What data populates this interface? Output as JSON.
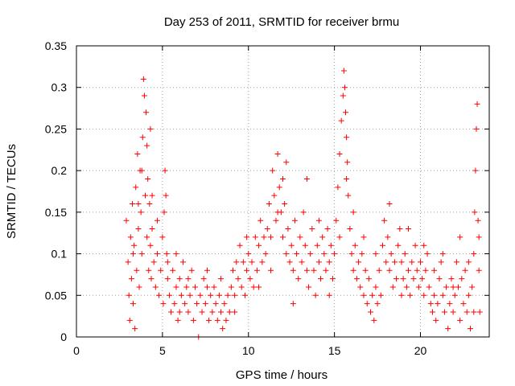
{
  "chart_data": {
    "type": "scatter",
    "title": "Day 253 of 2011, SRMTID for receiver brmu",
    "xlabel": "GPS time / hours",
    "ylabel": "SRMTID / TECUs",
    "xlim": [
      0,
      24
    ],
    "ylim": [
      0,
      0.35
    ],
    "xticks": [
      0,
      5,
      10,
      15,
      20
    ],
    "xtick_labels": [
      "0",
      "5",
      "10",
      "15",
      "20"
    ],
    "yticks": [
      0,
      0.05,
      0.1,
      0.15,
      0.2,
      0.25,
      0.3,
      0.35
    ],
    "ytick_labels": [
      "0",
      "0.05",
      "0.1",
      "0.15",
      "0.2",
      "0.25",
      "0.3",
      "0.35"
    ],
    "grid": true,
    "marker": "+",
    "series": [
      {
        "name": "SRMTID",
        "color": "#ff0000",
        "points": [
          [
            2.9,
            0.14
          ],
          [
            3.0,
            0.09
          ],
          [
            3.05,
            0.05
          ],
          [
            3.1,
            0.02
          ],
          [
            3.15,
            0.12
          ],
          [
            3.2,
            0.07
          ],
          [
            3.25,
            0.16
          ],
          [
            3.3,
            0.04
          ],
          [
            3.35,
            0.11
          ],
          [
            3.4,
            0.01
          ],
          [
            3.45,
            0.18
          ],
          [
            3.5,
            0.08
          ],
          [
            3.55,
            0.22
          ],
          [
            3.6,
            0.13
          ],
          [
            3.65,
            0.06
          ],
          [
            3.7,
            0.2
          ],
          [
            3.75,
            0.15
          ],
          [
            3.8,
            0.1
          ],
          [
            3.85,
            0.24
          ],
          [
            3.9,
            0.31
          ],
          [
            3.95,
            0.29
          ],
          [
            4.0,
            0.17
          ],
          [
            4.05,
            0.27
          ],
          [
            4.1,
            0.12
          ],
          [
            4.15,
            0.19
          ],
          [
            4.2,
            0.08
          ],
          [
            4.25,
            0.16
          ],
          [
            4.3,
            0.11
          ],
          [
            4.35,
            0.07
          ],
          [
            4.4,
            0.13
          ],
          [
            4.5,
            0.09
          ],
          [
            4.6,
            0.06
          ],
          [
            4.7,
            0.1
          ],
          [
            4.8,
            0.05
          ],
          [
            4.9,
            0.08
          ],
          [
            5.0,
            0.12
          ],
          [
            5.05,
            0.04
          ],
          [
            5.1,
            0.15
          ],
          [
            5.15,
            0.2
          ],
          [
            5.2,
            0.17
          ],
          [
            5.25,
            0.1
          ],
          [
            5.3,
            0.07
          ],
          [
            5.4,
            0.05
          ],
          [
            5.5,
            0.03
          ],
          [
            5.6,
            0.08
          ],
          [
            5.7,
            0.04
          ],
          [
            5.8,
            0.06
          ],
          [
            5.9,
            0.02
          ],
          [
            6.0,
            0.07
          ],
          [
            6.1,
            0.05
          ],
          [
            6.2,
            0.09
          ],
          [
            6.3,
            0.04
          ],
          [
            6.4,
            0.06
          ],
          [
            6.5,
            0.03
          ],
          [
            6.6,
            0.05
          ],
          [
            6.7,
            0.08
          ],
          [
            6.8,
            0.02
          ],
          [
            6.9,
            0.06
          ],
          [
            7.0,
            0.04
          ],
          [
            7.1,
            0.0
          ],
          [
            7.2,
            0.05
          ],
          [
            7.3,
            0.03
          ],
          [
            7.4,
            0.07
          ],
          [
            7.5,
            0.04
          ],
          [
            7.6,
            0.06
          ],
          [
            7.7,
            0.02
          ],
          [
            7.8,
            0.05
          ],
          [
            7.9,
            0.03
          ],
          [
            8.0,
            0.06
          ],
          [
            8.1,
            0.04
          ],
          [
            8.2,
            0.02
          ],
          [
            8.3,
            0.05
          ],
          [
            8.4,
            0.03
          ],
          [
            8.5,
            0.01
          ],
          [
            8.6,
            0.04
          ],
          [
            8.7,
            0.02
          ],
          [
            8.8,
            0.05
          ],
          [
            8.9,
            0.03
          ],
          [
            9.0,
            0.06
          ],
          [
            9.1,
            0.08
          ],
          [
            9.2,
            0.05
          ],
          [
            9.3,
            0.09
          ],
          [
            9.4,
            0.07
          ],
          [
            9.5,
            0.11
          ],
          [
            9.6,
            0.06
          ],
          [
            9.7,
            0.09
          ],
          [
            9.8,
            0.05
          ],
          [
            9.9,
            0.08
          ],
          [
            10.0,
            0.1
          ],
          [
            10.1,
            0.07
          ],
          [
            10.2,
            0.09
          ],
          [
            10.3,
            0.06
          ],
          [
            10.4,
            0.12
          ],
          [
            10.5,
            0.08
          ],
          [
            10.6,
            0.11
          ],
          [
            10.7,
            0.14
          ],
          [
            10.8,
            0.09
          ],
          [
            10.9,
            0.12
          ],
          [
            11.0,
            0.1
          ],
          [
            11.1,
            0.13
          ],
          [
            11.2,
            0.16
          ],
          [
            11.3,
            0.12
          ],
          [
            11.4,
            0.2
          ],
          [
            11.5,
            0.17
          ],
          [
            11.6,
            0.14
          ],
          [
            11.7,
            0.22
          ],
          [
            11.8,
            0.18
          ],
          [
            11.9,
            0.15
          ],
          [
            12.0,
            0.12
          ],
          [
            12.1,
            0.16
          ],
          [
            12.2,
            0.1
          ],
          [
            12.3,
            0.13
          ],
          [
            12.4,
            0.09
          ],
          [
            12.5,
            0.11
          ],
          [
            12.6,
            0.08
          ],
          [
            12.7,
            0.14
          ],
          [
            12.8,
            0.1
          ],
          [
            12.9,
            0.07
          ],
          [
            13.0,
            0.12
          ],
          [
            13.1,
            0.09
          ],
          [
            13.2,
            0.15
          ],
          [
            13.3,
            0.11
          ],
          [
            13.4,
            0.08
          ],
          [
            13.5,
            0.06
          ],
          [
            13.6,
            0.1
          ],
          [
            13.7,
            0.13
          ],
          [
            13.8,
            0.08
          ],
          [
            13.9,
            0.05
          ],
          [
            14.0,
            0.11
          ],
          [
            14.1,
            0.09
          ],
          [
            14.2,
            0.07
          ],
          [
            14.3,
            0.12
          ],
          [
            14.4,
            0.1
          ],
          [
            14.5,
            0.08
          ],
          [
            14.6,
            0.13
          ],
          [
            14.7,
            0.09
          ],
          [
            14.8,
            0.11
          ],
          [
            14.9,
            0.07
          ],
          [
            15.0,
            0.1
          ],
          [
            15.1,
            0.14
          ],
          [
            15.2,
            0.18
          ],
          [
            15.3,
            0.22
          ],
          [
            15.4,
            0.26
          ],
          [
            15.5,
            0.29
          ],
          [
            15.55,
            0.32
          ],
          [
            15.6,
            0.3
          ],
          [
            15.65,
            0.27
          ],
          [
            15.7,
            0.24
          ],
          [
            15.75,
            0.21
          ],
          [
            15.8,
            0.17
          ],
          [
            15.9,
            0.13
          ],
          [
            16.0,
            0.1
          ],
          [
            16.1,
            0.08
          ],
          [
            16.2,
            0.11
          ],
          [
            16.3,
            0.07
          ],
          [
            16.4,
            0.09
          ],
          [
            16.5,
            0.06
          ],
          [
            16.6,
            0.1
          ],
          [
            16.7,
            0.05
          ],
          [
            16.8,
            0.08
          ],
          [
            16.9,
            0.04
          ],
          [
            17.0,
            0.07
          ],
          [
            17.1,
            0.03
          ],
          [
            17.2,
            0.05
          ],
          [
            17.3,
            0.02
          ],
          [
            17.4,
            0.06
          ],
          [
            17.5,
            0.04
          ],
          [
            17.6,
            0.08
          ],
          [
            17.7,
            0.05
          ],
          [
            17.8,
            0.11
          ],
          [
            17.9,
            0.14
          ],
          [
            18.0,
            0.09
          ],
          [
            18.1,
            0.12
          ],
          [
            18.2,
            0.08
          ],
          [
            18.3,
            0.1
          ],
          [
            18.4,
            0.06
          ],
          [
            18.5,
            0.09
          ],
          [
            18.6,
            0.07
          ],
          [
            18.7,
            0.11
          ],
          [
            18.8,
            0.13
          ],
          [
            18.9,
            0.09
          ],
          [
            19.0,
            0.07
          ],
          [
            19.1,
            0.1
          ],
          [
            19.2,
            0.06
          ],
          [
            19.3,
            0.08
          ],
          [
            19.4,
            0.05
          ],
          [
            19.5,
            0.09
          ],
          [
            19.6,
            0.07
          ],
          [
            19.7,
            0.11
          ],
          [
            19.8,
            0.08
          ],
          [
            19.9,
            0.06
          ],
          [
            20.0,
            0.09
          ],
          [
            20.1,
            0.07
          ],
          [
            20.2,
            0.05
          ],
          [
            20.3,
            0.08
          ],
          [
            20.4,
            0.1
          ],
          [
            20.5,
            0.06
          ],
          [
            20.6,
            0.04
          ],
          [
            20.7,
            0.03
          ],
          [
            20.8,
            0.05
          ],
          [
            20.9,
            0.02
          ],
          [
            21.0,
            0.04
          ],
          [
            21.1,
            0.07
          ],
          [
            21.2,
            0.09
          ],
          [
            21.3,
            0.05
          ],
          [
            21.4,
            0.03
          ],
          [
            21.5,
            0.06
          ],
          [
            21.6,
            0.01
          ],
          [
            21.7,
            0.04
          ],
          [
            21.8,
            0.07
          ],
          [
            21.9,
            0.03
          ],
          [
            22.0,
            0.05
          ],
          [
            22.1,
            0.09
          ],
          [
            22.2,
            0.06
          ],
          [
            22.3,
            0.02
          ],
          [
            22.4,
            0.07
          ],
          [
            22.5,
            0.04
          ],
          [
            22.6,
            0.08
          ],
          [
            22.7,
            0.03
          ],
          [
            22.8,
            0.05
          ],
          [
            22.9,
            0.01
          ],
          [
            23.0,
            0.06
          ],
          [
            23.1,
            0.1
          ],
          [
            23.15,
            0.15
          ],
          [
            23.2,
            0.2
          ],
          [
            23.25,
            0.25
          ],
          [
            23.3,
            0.28
          ],
          [
            23.35,
            0.14
          ],
          [
            23.4,
            0.08
          ],
          [
            23.45,
            0.03
          ],
          [
            3.3,
            0.1
          ],
          [
            3.6,
            0.16
          ],
          [
            4.1,
            0.23
          ],
          [
            4.4,
            0.17
          ],
          [
            4.7,
            0.14
          ],
          [
            5.3,
            0.09
          ],
          [
            6.0,
            0.03
          ],
          [
            6.5,
            0.07
          ],
          [
            7.6,
            0.08
          ],
          [
            8.4,
            0.07
          ],
          [
            9.2,
            0.03
          ],
          [
            9.9,
            0.12
          ],
          [
            10.6,
            0.06
          ],
          [
            11.3,
            0.08
          ],
          [
            11.7,
            0.15
          ],
          [
            12.2,
            0.21
          ],
          [
            12.6,
            0.04
          ],
          [
            13.4,
            0.19
          ],
          [
            14.1,
            0.14
          ],
          [
            14.7,
            0.05
          ],
          [
            15.3,
            0.12
          ],
          [
            15.7,
            0.19
          ],
          [
            16.1,
            0.15
          ],
          [
            16.7,
            0.12
          ],
          [
            17.4,
            0.1
          ],
          [
            18.2,
            0.16
          ],
          [
            18.9,
            0.05
          ],
          [
            19.3,
            0.13
          ],
          [
            20.2,
            0.11
          ],
          [
            20.8,
            0.08
          ],
          [
            21.3,
            0.1
          ],
          [
            21.9,
            0.06
          ],
          [
            22.3,
            0.12
          ],
          [
            22.8,
            0.09
          ],
          [
            23.1,
            0.03
          ],
          [
            23.4,
            0.12
          ],
          [
            3.8,
            0.2
          ],
          [
            4.3,
            0.25
          ],
          [
            5.8,
            0.1
          ],
          [
            12.0,
            0.19
          ]
        ]
      }
    ]
  }
}
